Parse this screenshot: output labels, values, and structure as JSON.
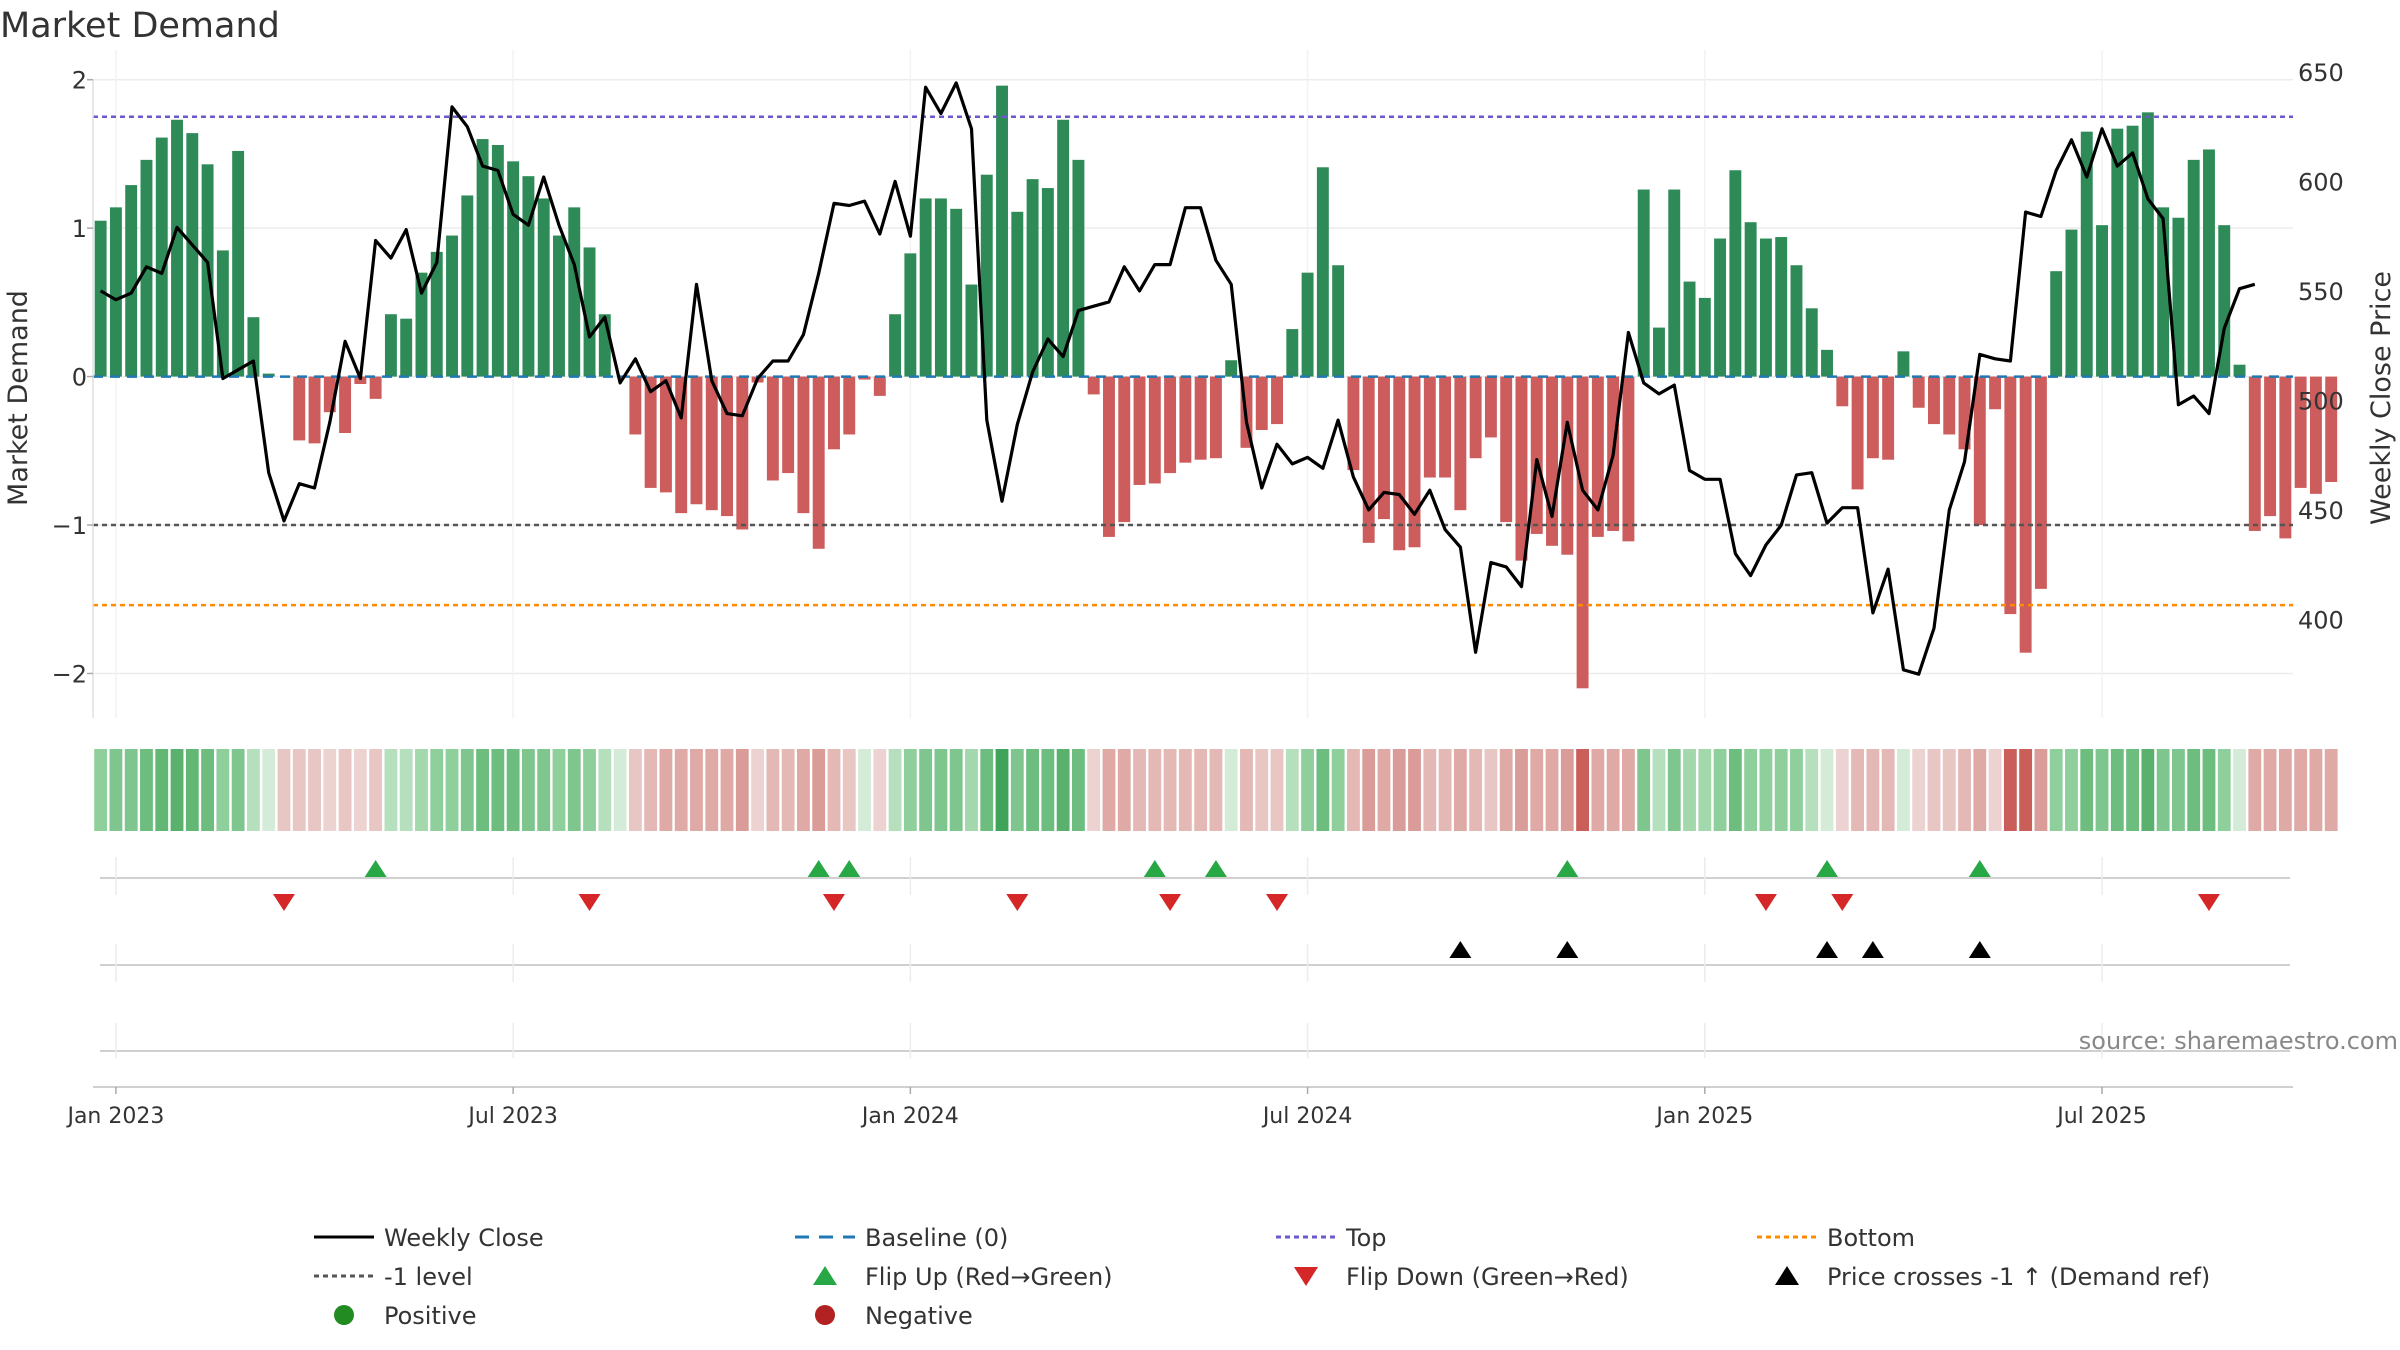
{
  "chart_data": {
    "type": "bar",
    "title": "Market Demand",
    "ylabel_left": "Market Demand",
    "ylabel_right": "Weekly Close Price",
    "ylim_left": [
      -2.3,
      2.2
    ],
    "ylim_right": [
      355,
      660
    ],
    "yticks_left": [
      2,
      1,
      0,
      -1,
      -2
    ],
    "ytick_labels_left": [
      "2",
      "1",
      "0",
      "−1",
      "−2"
    ],
    "yticks_right": [
      650,
      600,
      550,
      500,
      450,
      400
    ],
    "x_ticks": [
      "Jan 2023",
      "Jul 2023",
      "Jan 2024",
      "Jul 2024",
      "Jan 2025",
      "Jul 2025"
    ],
    "x_tick_weeks": [
      1,
      27,
      53,
      79,
      105,
      131
    ],
    "weeks_total": 144,
    "top_level": 1.75,
    "bottom_level": -1.54,
    "minus_one_level": -1.0,
    "demand": [
      1.05,
      1.14,
      1.29,
      1.46,
      1.61,
      1.73,
      1.64,
      1.43,
      0.85,
      1.52,
      0.4,
      0.02,
      0.0,
      -0.43,
      -0.45,
      -0.24,
      -0.38,
      -0.05,
      -0.15,
      0.42,
      0.39,
      0.7,
      0.84,
      0.95,
      1.22,
      1.6,
      1.56,
      1.45,
      1.35,
      1.2,
      0.95,
      1.14,
      0.87,
      0.42,
      0.0,
      -0.39,
      -0.75,
      -0.78,
      -0.92,
      -0.86,
      -0.9,
      -0.94,
      -1.03,
      -0.04,
      -0.7,
      -0.65,
      -0.92,
      -1.16,
      -0.49,
      -0.39,
      -0.02,
      -0.13,
      0.42,
      0.83,
      1.2,
      1.2,
      1.13,
      0.62,
      1.36,
      1.96,
      1.11,
      1.33,
      1.27,
      1.73,
      1.46,
      -0.12,
      -1.08,
      -0.98,
      -0.73,
      -0.72,
      -0.65,
      -0.58,
      -0.56,
      -0.55,
      0.11,
      -0.48,
      -0.36,
      -0.32,
      0.32,
      0.7,
      1.41,
      0.75,
      -0.63,
      -1.12,
      -0.96,
      -1.17,
      -1.15,
      -0.68,
      -0.68,
      -0.9,
      -0.55,
      -0.41,
      -0.98,
      -1.24,
      -1.06,
      -1.14,
      -1.2,
      -2.1,
      -1.08,
      -1.04,
      -1.11,
      1.26,
      0.33,
      1.26,
      0.64,
      0.53,
      0.93,
      1.39,
      1.04,
      0.93,
      0.94,
      0.75,
      0.46,
      0.18,
      -0.2,
      -0.76,
      -0.55,
      -0.56,
      0.17,
      -0.21,
      -0.32,
      -0.39,
      -0.49,
      -1.0,
      -0.22,
      -1.6,
      -1.86,
      -1.43,
      0.71,
      0.99,
      1.65,
      1.02,
      1.67,
      1.69,
      1.78,
      1.14,
      1.07,
      1.46,
      1.53,
      1.02,
      0.08,
      -1.04,
      -0.94,
      -1.09,
      -0.75,
      -0.79,
      -0.71
    ],
    "weekly_close": [
      550,
      546,
      549,
      561,
      558,
      579,
      571,
      563,
      510,
      514,
      518,
      467,
      445,
      462,
      460,
      490,
      527,
      510,
      573,
      565,
      578,
      549,
      563,
      634,
      625,
      607,
      605,
      585,
      580,
      602,
      580,
      562,
      529,
      538,
      508,
      519,
      504,
      509,
      492,
      553,
      509,
      494,
      493,
      510,
      518,
      518,
      530,
      558,
      590,
      589,
      591,
      576,
      600,
      575,
      643,
      631,
      645,
      624,
      491,
      454,
      489,
      513,
      528,
      520,
      541,
      543,
      545,
      561,
      550,
      562,
      562,
      588,
      588,
      564,
      553,
      490,
      460,
      480,
      471,
      474,
      469,
      491,
      465,
      450,
      458,
      457,
      448,
      459,
      441,
      433,
      385,
      426,
      424,
      415,
      473,
      447,
      490,
      459,
      450,
      475,
      531,
      508,
      503,
      507,
      468,
      464,
      464,
      430,
      420,
      434,
      443,
      466,
      467,
      444,
      451,
      451,
      403,
      423,
      377,
      375,
      396,
      450,
      472,
      521,
      519,
      518,
      586,
      584,
      605,
      619,
      602,
      624,
      607,
      613,
      592,
      583,
      498,
      502,
      494,
      533,
      551,
      553
    ],
    "strip_colors": [
      "#8fcf9b",
      "#7ec68d",
      "#7ec68d",
      "#6dbd7f",
      "#62b775",
      "#5ab16e",
      "#62b775",
      "#6dbd7f",
      "#8fcf9b",
      "#7ec68d",
      "#b6dfbd",
      "#d4ecd7",
      "#e8c6c4",
      "#e8c6c4",
      "#e8c6c4",
      "#ecd2d0",
      "#e8c6c4",
      "#ecd2d0",
      "#e8c6c4",
      "#b6dfbd",
      "#b6dfbd",
      "#a3d7ac",
      "#8fcf9b",
      "#8fcf9b",
      "#7ec68d",
      "#6dbd7f",
      "#6dbd7f",
      "#6dbd7f",
      "#7ec68d",
      "#7ec68d",
      "#8fcf9b",
      "#7ec68d",
      "#8fcf9b",
      "#b6dfbd",
      "#d4ecd7",
      "#e8c6c4",
      "#e4b8b5",
      "#dfaaa6",
      "#dfaaa6",
      "#dfaaa6",
      "#dfaaa6",
      "#dfaaa6",
      "#d99c98",
      "#ecd2d0",
      "#e4b8b5",
      "#e4b8b5",
      "#dfaaa6",
      "#d99c98",
      "#e4b8b5",
      "#e8c6c4",
      "#d4ecd7",
      "#ecd2d0",
      "#b6dfbd",
      "#8fcf9b",
      "#7ec68d",
      "#7ec68d",
      "#7ec68d",
      "#a3d7ac",
      "#6dbd7f",
      "#3fa35a",
      "#7ec68d",
      "#6dbd7f",
      "#6dbd7f",
      "#5ab16e",
      "#6dbd7f",
      "#ecd2d0",
      "#dfaaa6",
      "#dfaaa6",
      "#e4b8b5",
      "#e4b8b5",
      "#e4b8b5",
      "#e4b8b5",
      "#e4b8b5",
      "#e4b8b5",
      "#d4ecd7",
      "#e4b8b5",
      "#e8c6c4",
      "#e8c6c4",
      "#b6dfbd",
      "#8fcf9b",
      "#6dbd7f",
      "#8fcf9b",
      "#e4b8b5",
      "#d99c98",
      "#dfaaa6",
      "#d99c98",
      "#d99c98",
      "#e4b8b5",
      "#e4b8b5",
      "#dfaaa6",
      "#e4b8b5",
      "#e8c6c4",
      "#dfaaa6",
      "#d99c98",
      "#dfaaa6",
      "#dfaaa6",
      "#d99c98",
      "#c95f58",
      "#dfaaa6",
      "#dfaaa6",
      "#dfaaa6",
      "#7ec68d",
      "#b6dfbd",
      "#7ec68d",
      "#a3d7ac",
      "#a3d7ac",
      "#8fcf9b",
      "#6dbd7f",
      "#8fcf9b",
      "#8fcf9b",
      "#8fcf9b",
      "#8fcf9b",
      "#b6dfbd",
      "#d4ecd7",
      "#ecd2d0",
      "#e4b8b5",
      "#e4b8b5",
      "#e4b8b5",
      "#d4ecd7",
      "#ecd2d0",
      "#e8c6c4",
      "#e8c6c4",
      "#e4b8b5",
      "#dfaaa6",
      "#ecd2d0",
      "#c95f58",
      "#c95f58",
      "#d99c98",
      "#8fcf9b",
      "#8fcf9b",
      "#6dbd7f",
      "#7ec68d",
      "#6dbd7f",
      "#6dbd7f",
      "#5ab16e",
      "#7ec68d",
      "#7ec68d",
      "#6dbd7f",
      "#6dbd7f",
      "#8fcf9b",
      "#d4ecd7",
      "#dfaaa6",
      "#dfaaa6",
      "#dfaaa6",
      "#dfaaa6",
      "#dfaaa6",
      "#dfaaa6"
    ],
    "flip_up_weeks": [
      18,
      47,
      49,
      69,
      73,
      96,
      113,
      123
    ],
    "flip_down_weeks": [
      12,
      32,
      48,
      60,
      70,
      77,
      109,
      114,
      138
    ],
    "price_cross_weeks": [
      89,
      96,
      113,
      116,
      123
    ],
    "source": "source: sharemaestro.com",
    "colors": {
      "positive_bar": "#2e8b57",
      "negative_bar": "#cd5c5c",
      "close_line": "#000000",
      "baseline": "#1f77b4",
      "top": "#6a5acd",
      "bottom": "#ff8c00",
      "minus_one": "#555555",
      "flip_up": "#28a745",
      "flip_down": "#d62728",
      "cross": "#000000",
      "positive_dot": "#228b22",
      "negative_dot": "#b22222"
    },
    "legend": [
      {
        "label": "Weekly Close",
        "kind": "line-solid",
        "color": "#000000"
      },
      {
        "label": "Baseline (0)",
        "kind": "line-dash",
        "color": "#1f77b4"
      },
      {
        "label": "Top",
        "kind": "line-dot",
        "color": "#6a5acd"
      },
      {
        "label": "Bottom",
        "kind": "line-dot",
        "color": "#ff8c00"
      },
      {
        "label": "-1 level",
        "kind": "line-dot",
        "color": "#555555"
      },
      {
        "label": "Flip Up (Red→Green)",
        "kind": "tri-up",
        "color": "#28a745"
      },
      {
        "label": "Flip Down (Green→Red)",
        "kind": "tri-down",
        "color": "#d62728"
      },
      {
        "label": "Price crosses -1 ↑ (Demand ref)",
        "kind": "tri-up",
        "color": "#000000"
      },
      {
        "label": "Positive",
        "kind": "dot",
        "color": "#228b22"
      },
      {
        "label": "Negative",
        "kind": "dot",
        "color": "#b22222"
      }
    ]
  }
}
